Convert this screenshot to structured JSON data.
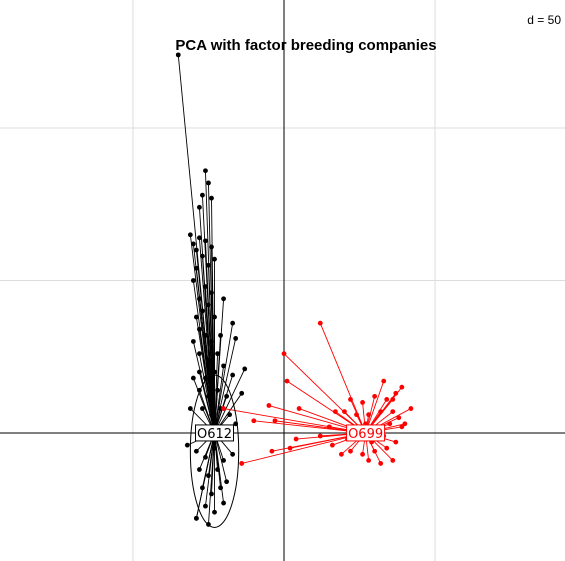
{
  "chart_data": {
    "type": "scatter",
    "title": "PCA with factor breeding companies",
    "scale_label": "d = 50",
    "xlim": [
      -94,
      93
    ],
    "ylim": [
      -42,
      142
    ],
    "grid_step": 50,
    "grid": true,
    "axes_at_origin": true,
    "colors": {
      "grid": "#dddddd",
      "axis": "#000000",
      "background": "#ffffff"
    },
    "series": [
      {
        "name": "O612",
        "color": "#000000",
        "centroid": [
          -23,
          0
        ],
        "ellipse": {
          "rx": 8,
          "ry": 25,
          "cy_offset": -6
        },
        "points": [
          [
            -35,
            124
          ],
          [
            -26,
            86
          ],
          [
            -25,
            82
          ],
          [
            -27,
            78
          ],
          [
            -24,
            77
          ],
          [
            -28,
            74
          ],
          [
            -31,
            65
          ],
          [
            -30,
            62
          ],
          [
            -29,
            60
          ],
          [
            -28,
            64
          ],
          [
            -26,
            63
          ],
          [
            -24,
            61
          ],
          [
            -27,
            58
          ],
          [
            -25,
            55
          ],
          [
            -29,
            54
          ],
          [
            -23,
            57
          ],
          [
            -30,
            50
          ],
          [
            -26,
            48
          ],
          [
            -28,
            44
          ],
          [
            -24,
            46
          ],
          [
            -27,
            40
          ],
          [
            -25,
            42
          ],
          [
            -29,
            38
          ],
          [
            -23,
            38
          ],
          [
            -20,
            44
          ],
          [
            -28,
            34
          ],
          [
            -26,
            32
          ],
          [
            -30,
            30
          ],
          [
            -24,
            30
          ],
          [
            -21,
            32
          ],
          [
            -28,
            26
          ],
          [
            -25,
            24
          ],
          [
            -22,
            26
          ],
          [
            -17,
            36
          ],
          [
            -16,
            31
          ],
          [
            -28,
            20
          ],
          [
            -26,
            18
          ],
          [
            -23,
            20
          ],
          [
            -20,
            22
          ],
          [
            -17,
            19
          ],
          [
            -13,
            21
          ],
          [
            -14,
            13
          ],
          [
            -28,
            14
          ],
          [
            -25,
            12
          ],
          [
            -22,
            14
          ],
          [
            -19,
            12
          ],
          [
            -27,
            8
          ],
          [
            -24,
            6
          ],
          [
            -21,
            8
          ],
          [
            -18,
            6
          ],
          [
            -28,
            2
          ],
          [
            -25,
            -2
          ],
          [
            -22,
            2
          ],
          [
            -19,
            -1
          ],
          [
            -16,
            3
          ],
          [
            -29,
            -6
          ],
          [
            -26,
            -8
          ],
          [
            -23,
            -5
          ],
          [
            -20,
            -9
          ],
          [
            -17,
            -7
          ],
          [
            -28,
            -12
          ],
          [
            -25,
            -14
          ],
          [
            -22,
            -12
          ],
          [
            -19,
            -16
          ],
          [
            -27,
            -18
          ],
          [
            -24,
            -20
          ],
          [
            -21,
            -18
          ],
          [
            -26,
            -24
          ],
          [
            -23,
            -26
          ],
          [
            -20,
            -23
          ],
          [
            -29,
            -28
          ],
          [
            -25,
            -30
          ],
          [
            -29,
            -28
          ],
          [
            -30,
            18
          ],
          [
            -31,
            8
          ],
          [
            -32,
            -4
          ]
        ]
      },
      {
        "name": "O699",
        "color": "#ff0000",
        "centroid": [
          27,
          0
        ],
        "points": [
          [
            12,
            36
          ],
          [
            0,
            26
          ],
          [
            1,
            17
          ],
          [
            33,
            17
          ],
          [
            37,
            13
          ],
          [
            39,
            15
          ],
          [
            36,
            11
          ],
          [
            34,
            11
          ],
          [
            30,
            12
          ],
          [
            26,
            10
          ],
          [
            22,
            11
          ],
          [
            20,
            7
          ],
          [
            24,
            6
          ],
          [
            28,
            6
          ],
          [
            32,
            7
          ],
          [
            36,
            7
          ],
          [
            38,
            5
          ],
          [
            35,
            3
          ],
          [
            31,
            2
          ],
          [
            27,
            3
          ],
          [
            23,
            2
          ],
          [
            21,
            -2
          ],
          [
            25,
            -2
          ],
          [
            29,
            -3
          ],
          [
            33,
            -1
          ],
          [
            37,
            -3
          ],
          [
            39,
            2
          ],
          [
            34,
            -5
          ],
          [
            30,
            -6
          ],
          [
            26,
            -7
          ],
          [
            22,
            -6
          ],
          [
            28,
            -9
          ],
          [
            32,
            -10
          ],
          [
            36,
            -9
          ],
          [
            17,
            7
          ],
          [
            15,
            2
          ],
          [
            12,
            -1
          ],
          [
            16,
            -4
          ],
          [
            19,
            -7
          ],
          [
            40,
            3
          ],
          [
            42,
            8
          ],
          [
            5,
            8
          ],
          [
            -5,
            9
          ],
          [
            -3,
            4
          ],
          [
            4,
            -2
          ],
          [
            -4,
            -6
          ],
          [
            -14,
            -10
          ],
          [
            2,
            -5
          ],
          [
            -20,
            8
          ],
          [
            -10,
            4
          ]
        ]
      }
    ]
  }
}
